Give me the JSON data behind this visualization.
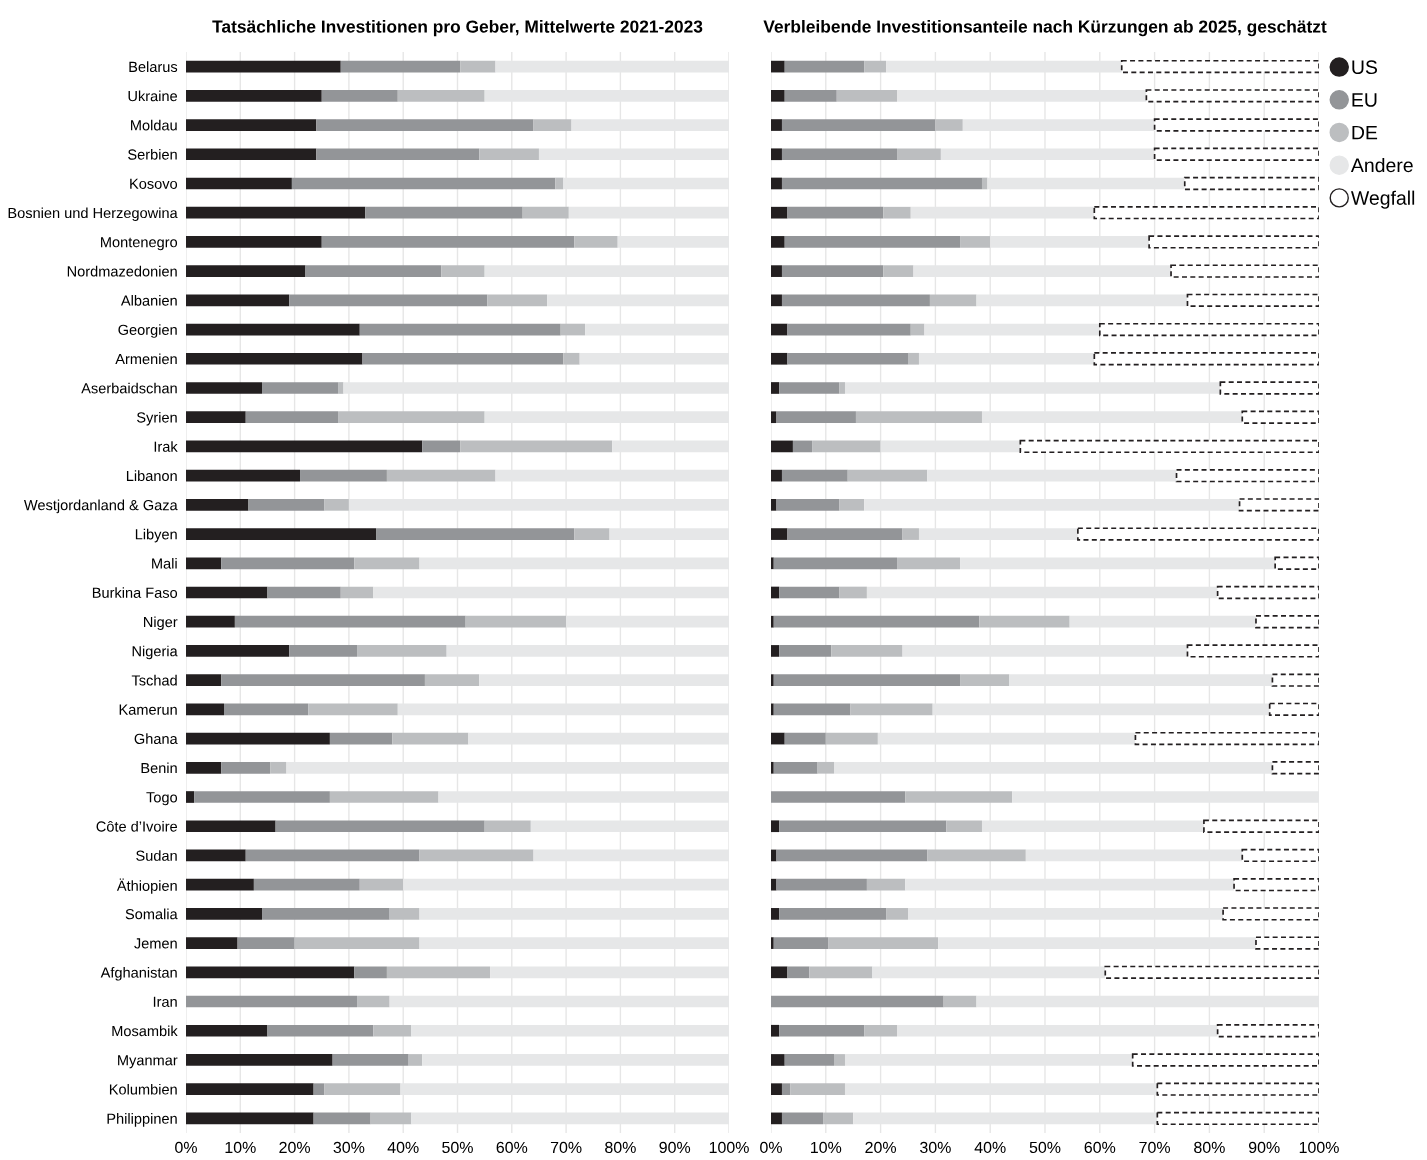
{
  "chart_data": [
    {
      "type": "bar",
      "orientation": "horizontal",
      "stacked": true,
      "title": "Tatsächliche Investitionen pro Geber, Mittelwerte 2021-2023",
      "categories": [
        "Belarus",
        "Ukraine",
        "Moldau",
        "Serbien",
        "Kosovo",
        "Bosnien und Herzegowina",
        "Montenegro",
        "Nordmazedonien",
        "Albanien",
        "Georgien",
        "Armenien",
        "Aserbaidschan",
        "Syrien",
        "Irak",
        "Libanon",
        "Westjordanland & Gaza",
        "Libyen",
        "Mali",
        "Burkina Faso",
        "Niger",
        "Nigeria",
        "Tschad",
        "Kamerun",
        "Ghana",
        "Benin",
        "Togo",
        "Côte d’Ivoire",
        "Sudan",
        "Äthiopien",
        "Somalia",
        "Jemen",
        "Afghanistan",
        "Iran",
        "Mosambik",
        "Myanmar",
        "Kolumbien",
        "Philippinen"
      ],
      "series": [
        {
          "color": "#231f20",
          "values": [
            28.5,
            25,
            24,
            24,
            19.5,
            33,
            25,
            22,
            19,
            32,
            32.5,
            14,
            11,
            43.5,
            21,
            11.5,
            35,
            6.5,
            15,
            9,
            19,
            6.5,
            7,
            26.5,
            6.5,
            1.5,
            16.5,
            11,
            12.5,
            14,
            9.5,
            31,
            0,
            15,
            27,
            23.5,
            23.5
          ]
        },
        {
          "color": "#939598",
          "values": [
            22,
            14,
            40,
            30,
            48.5,
            29,
            46.5,
            25,
            36.5,
            37,
            37,
            14,
            17,
            7,
            16,
            14,
            36.5,
            24.5,
            13.5,
            42.5,
            12.5,
            37.5,
            15.5,
            11.5,
            9,
            25,
            38.5,
            32,
            19.5,
            23.5,
            10.5,
            6,
            31.5,
            19.5,
            14,
            2,
            10.5
          ]
        },
        {
          "color": "#bcbec0",
          "values": [
            6.5,
            16,
            7,
            11,
            1.5,
            8.5,
            8,
            8,
            11,
            4.5,
            3,
            1,
            27,
            28,
            20,
            4.5,
            6.5,
            12,
            6,
            18.5,
            16.5,
            10,
            16.5,
            14,
            3,
            20,
            8.5,
            21,
            8,
            5.5,
            23,
            19,
            6,
            7,
            2.5,
            14,
            7.5
          ]
        },
        {
          "color": "#e6e7e8",
          "values": [
            43,
            45,
            29,
            35,
            30.5,
            29.5,
            20.5,
            45,
            33.5,
            26.5,
            27.5,
            71,
            45,
            21.5,
            43,
            70,
            22,
            57,
            65.5,
            30,
            52,
            46,
            61,
            48,
            81.5,
            53.5,
            36.5,
            36,
            60,
            57,
            57,
            44,
            62.5,
            58.5,
            56.5,
            60.5,
            58.5
          ]
        }
      ],
      "xlim": [
        0,
        100
      ],
      "xticks": [
        {
          "value": 0,
          "label": "0%"
        },
        {
          "value": 10,
          "label": "10%"
        },
        {
          "value": 20,
          "label": "20%"
        },
        {
          "value": 30,
          "label": "30%"
        },
        {
          "value": 40,
          "label": "40%"
        },
        {
          "value": 50,
          "label": "50%"
        },
        {
          "value": 60,
          "label": "60%"
        },
        {
          "value": 70,
          "label": "70%"
        },
        {
          "value": 80,
          "label": "80%"
        },
        {
          "value": 90,
          "label": "90%"
        },
        {
          "value": 100,
          "label": "100%"
        }
      ],
      "grid": "x"
    },
    {
      "type": "bar",
      "orientation": "horizontal",
      "stacked": true,
      "title": "Verbleibende Investitionsanteile nach Kürzungen ab 2025, geschätzt",
      "categories": [
        null,
        null,
        null,
        null,
        null,
        null,
        null,
        null,
        null,
        null,
        null,
        null,
        null,
        null,
        null,
        null,
        null,
        null,
        null,
        null,
        null,
        null,
        null,
        null,
        null,
        null,
        null,
        null,
        null,
        null,
        null,
        null,
        null,
        null,
        null,
        null,
        null
      ],
      "series": [
        {
          "name": "US",
          "color": "#231f20",
          "values": [
            2.5,
            2.5,
            2,
            2,
            2,
            3,
            2.5,
            2,
            2,
            3,
            3,
            1.5,
            1,
            4,
            2,
            1,
            3,
            0.5,
            1.5,
            0.5,
            1.5,
            0.5,
            0.5,
            2.5,
            0.5,
            0,
            1.5,
            1,
            1,
            1.5,
            0.5,
            3,
            0,
            1.5,
            2.5,
            2,
            2
          ]
        },
        {
          "name": "EU",
          "color": "#939598",
          "values": [
            14.5,
            9.5,
            28,
            21,
            36.5,
            17.5,
            32,
            18.5,
            27,
            22.5,
            22,
            11,
            14.5,
            3.5,
            12,
            11.5,
            21,
            22.5,
            11,
            37.5,
            9.5,
            34,
            14,
            7.5,
            8,
            24.5,
            30.5,
            27.5,
            16.5,
            19.5,
            10,
            4,
            31.5,
            15.5,
            9,
            1.5,
            7.5
          ]
        },
        {
          "name": "DE",
          "color": "#bcbec0",
          "values": [
            4,
            11,
            5,
            8,
            1,
            5,
            5.5,
            5.5,
            8.5,
            2.5,
            2,
            1,
            23,
            12.5,
            14.5,
            4.5,
            3,
            11.5,
            5,
            16.5,
            13,
            9,
            15,
            9.5,
            3,
            19.5,
            6.5,
            18,
            7,
            4,
            20,
            11.5,
            6,
            6,
            2,
            10,
            5.5
          ]
        },
        {
          "name": "Andere",
          "color": "#e6e7e8",
          "values": [
            43,
            45.5,
            35,
            39,
            36,
            33.5,
            29,
            47,
            38.5,
            32,
            32,
            68.5,
            47.5,
            25.5,
            45.5,
            68.5,
            29,
            57.5,
            64,
            34,
            52,
            48,
            61.5,
            47,
            80,
            56,
            40.5,
            39.5,
            60,
            57.5,
            58,
            42.5,
            62.5,
            58.5,
            52.5,
            57,
            55.5
          ]
        },
        {
          "name": "Wegfall",
          "color": "#231f20",
          "line_style": "dashed",
          "values": [
            36,
            31.5,
            30,
            30,
            24.5,
            41,
            31,
            27,
            24,
            40,
            41,
            18,
            14,
            54.5,
            26,
            14.5,
            44,
            8,
            18.5,
            11.5,
            24,
            8.5,
            9,
            33.5,
            8.5,
            null,
            21,
            14,
            15.5,
            17.5,
            11.5,
            39,
            null,
            18.5,
            34,
            29.5,
            29.5
          ]
        }
      ],
      "xlim": [
        0,
        100
      ],
      "xticks": [
        {
          "value": 0,
          "label": "0%"
        },
        {
          "value": 10,
          "label": "10%"
        },
        {
          "value": 20,
          "label": "20%"
        },
        {
          "value": 30,
          "label": "30%"
        },
        {
          "value": 40,
          "label": "40%"
        },
        {
          "value": 50,
          "label": "50%"
        },
        {
          "value": 60,
          "label": "60%"
        },
        {
          "value": 70,
          "label": "70%"
        },
        {
          "value": 80,
          "label": "80%"
        },
        {
          "value": 90,
          "label": "90%"
        },
        {
          "value": 100,
          "label": "100%"
        }
      ],
      "grid": "x",
      "legend": "right",
      "tick_labels": "x"
    }
  ]
}
